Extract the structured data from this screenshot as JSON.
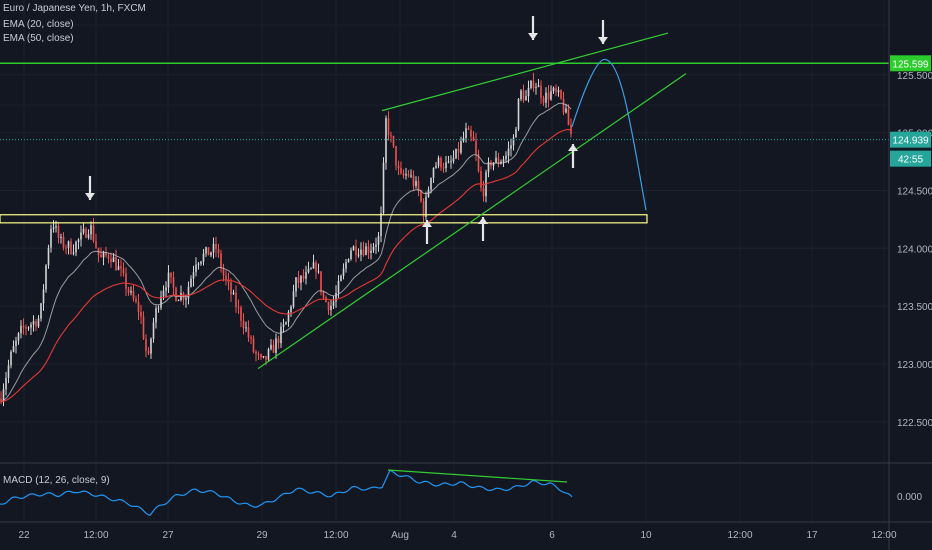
{
  "chart_data": {
    "type": "candlestick",
    "symbol": "Euro / Japanese Yen, 1h, FXCM",
    "indicators": [
      "EMA (20, close)",
      "EMA (50, close)"
    ],
    "macd_label": "MACD (12, 26, close, 9)",
    "y_ticks": [
      "125.500",
      "125.000",
      "124.500",
      "124.000",
      "123.500",
      "123.000",
      "122.500"
    ],
    "y_tick_values": [
      125.5,
      125.0,
      124.5,
      124.0,
      123.5,
      123.0,
      122.5
    ],
    "ylim": [
      122.2,
      126.1
    ],
    "macd_tick": "0.000",
    "x_ticks": [
      "22",
      "12:00",
      "27",
      "29",
      "12:00",
      "Aug",
      "4",
      "6",
      "10",
      "12:00",
      "17",
      "12:00"
    ],
    "resistance_price": 125.599,
    "current_price": 124.939,
    "countdown": "42:55",
    "support_zone": [
      124.22,
      124.29
    ],
    "colors": {
      "background": "#131722",
      "up": "#d5d5d5",
      "down": "#ef5350",
      "ema20": "#c8c8c8",
      "ema50": "#e53935",
      "trendline": "#33cc33",
      "resistance": "#2ccc2c",
      "current": "#26a69a",
      "projection": "#3d9ee5",
      "macd": "#2196f3",
      "zone": "#ffff88"
    },
    "annotations": {
      "down_arrows": 3,
      "up_arrows": 3,
      "channel": "rising wedge",
      "projection": "rise to resistance then drop"
    }
  }
}
